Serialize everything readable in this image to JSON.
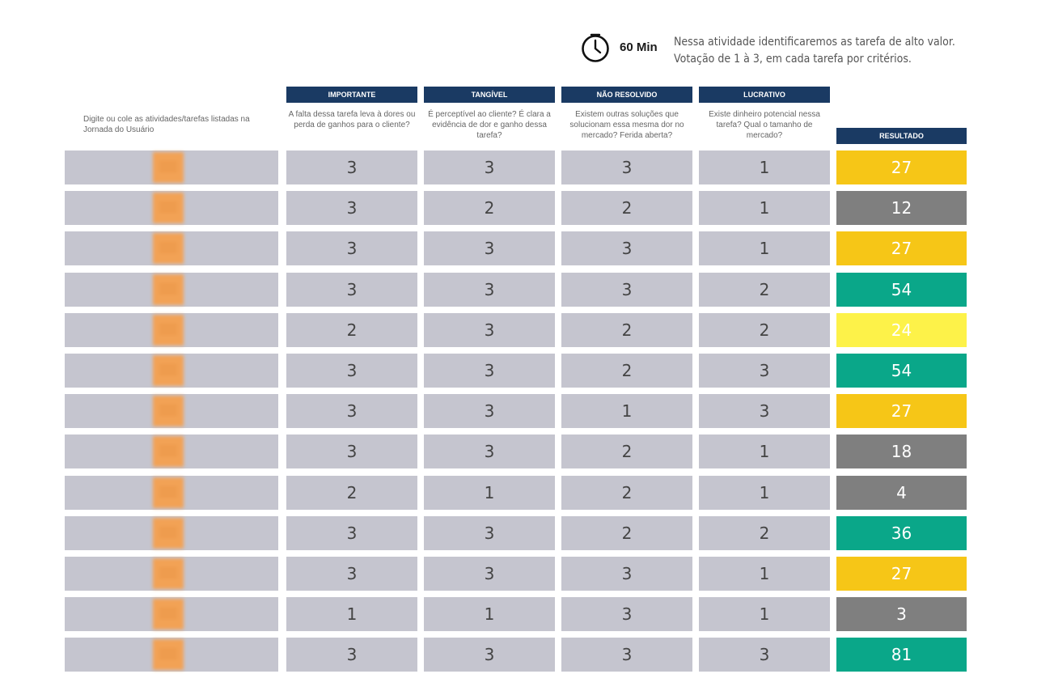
{
  "header": {
    "timer_icon": "clock-icon",
    "time": "60 Min",
    "instructions": [
      "Nessa atividade identificaremos as tarefa de alto valor.",
      "Votação de 1 à 3, em cada tarefa por critérios."
    ]
  },
  "task_column_label": "Digite ou cole as atividades/tarefas listadas na Jornada do Usuário",
  "criteria": [
    {
      "title": "IMPORTANTE",
      "description": "A falta dessa tarefa leva à dores ou perda de ganhos para o cliente?"
    },
    {
      "title": "TANGÍVEL",
      "description": "É perceptível ao cliente? É clara a evidência de dor e ganho dessa tarefa?"
    },
    {
      "title": "NÃO RESOLVIDO",
      "description": "Existem outras soluções que solucionam essa mesma dor no mercado? Ferida aberta?"
    },
    {
      "title": "LUCRATIVO",
      "description": "Existe dinheiro potencial nessa tarefa? Qual o tamanho de mercado?"
    }
  ],
  "result_label": "RESULTADO",
  "colors": {
    "header_bg": "#1a3a63",
    "cell_bg": "#c5c5cf",
    "yellow": "#f6c617",
    "light_yellow": "#fdf249",
    "gray": "#7f7f7f",
    "green": "#0aa789"
  },
  "rows": [
    {
      "scores": [
        "3",
        "3",
        "3",
        "1"
      ],
      "result": "27",
      "color": "#f6c617"
    },
    {
      "scores": [
        "3",
        "2",
        "2",
        "1"
      ],
      "result": "12",
      "color": "#7f7f7f"
    },
    {
      "scores": [
        "3",
        "3",
        "3",
        "1"
      ],
      "result": "27",
      "color": "#f6c617"
    },
    {
      "scores": [
        "3",
        "3",
        "3",
        "2"
      ],
      "result": "54",
      "color": "#0aa789"
    },
    {
      "scores": [
        "2",
        "3",
        "2",
        "2"
      ],
      "result": "24",
      "color": "#fdf249"
    },
    {
      "scores": [
        "3",
        "3",
        "2",
        "3"
      ],
      "result": "54",
      "color": "#0aa789"
    },
    {
      "scores": [
        "3",
        "3",
        "1",
        "3"
      ],
      "result": "27",
      "color": "#f6c617"
    },
    {
      "scores": [
        "3",
        "3",
        "2",
        "1"
      ],
      "result": "18",
      "color": "#7f7f7f"
    },
    {
      "scores": [
        "2",
        "1",
        "2",
        "1"
      ],
      "result": "4",
      "color": "#7f7f7f"
    },
    {
      "scores": [
        "3",
        "3",
        "2",
        "2"
      ],
      "result": "36",
      "color": "#0aa789"
    },
    {
      "scores": [
        "3",
        "3",
        "3",
        "1"
      ],
      "result": "27",
      "color": "#f6c617"
    },
    {
      "scores": [
        "1",
        "1",
        "3",
        "1"
      ],
      "result": "3",
      "color": "#7f7f7f"
    },
    {
      "scores": [
        "3",
        "3",
        "3",
        "3"
      ],
      "result": "81",
      "color": "#0aa789"
    }
  ]
}
